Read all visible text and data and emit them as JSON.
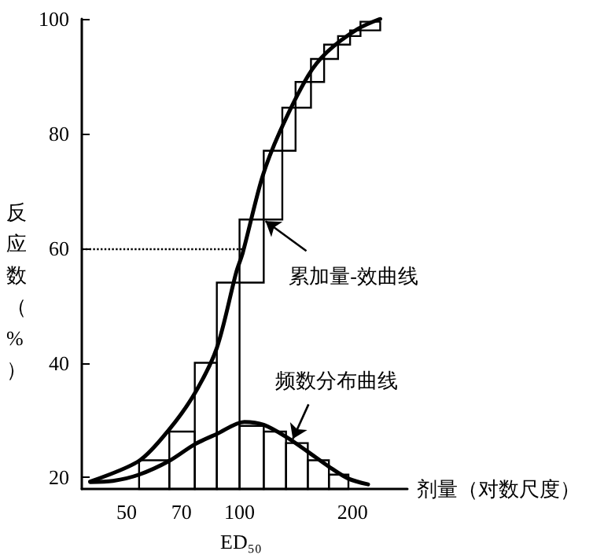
{
  "chart_data": {
    "type": "line",
    "xlabel": "剂量（对数尺度）",
    "ylabel": "反应数（%）",
    "log": "x",
    "xlim": [
      38,
      280
    ],
    "xticks": [
      50,
      70,
      100,
      200
    ],
    "ylim": [
      18,
      100
    ],
    "yticks": [
      20,
      40,
      60,
      80,
      100
    ],
    "grid": false,
    "marker": "none",
    "line_style": "solid",
    "series": [
      {
        "type": "histogram",
        "color": "#000000",
        "bins": [
          54,
          65,
          76,
          87,
          100,
          116,
          130,
          141,
          155,
          168,
          183,
          197,
          210,
          237
        ],
        "base": [
          18,
          18,
          18,
          18,
          54,
          65,
          77,
          84.5,
          89,
          93,
          95.5,
          97,
          98
        ],
        "values": [
          5,
          10,
          22,
          36,
          11,
          12,
          7.5,
          4.5,
          4,
          2.5,
          1.5,
          1,
          1.5
        ]
      },
      {
        "type": "histogram",
        "color": "#000000",
        "bins": [
          100,
          116,
          133,
          152,
          173,
          195
        ],
        "values": [
          29,
          28,
          26,
          23,
          20.5
        ]
      },
      {
        "color": "#000000",
        "x": [
          40,
          54,
          65,
          76,
          87,
          98,
          102,
          115,
          128,
          152,
          171,
          206,
          237
        ],
        "values": [
          19.3,
          22.9,
          28.4,
          34.7,
          42.6,
          55.8,
          59.2,
          72.4,
          80.3,
          90,
          94.2,
          98.2,
          100
        ]
      },
      {
        "color": "#000000",
        "x": [
          40,
          46,
          54,
          65,
          76,
          87,
          103,
          116,
          133,
          152,
          173,
          195,
          220
        ],
        "values": [
          19.2,
          19.4,
          20.5,
          22.9,
          25.8,
          27.6,
          29.7,
          29.2,
          27.1,
          24.5,
          21.9,
          19.8,
          18.8
        ]
      }
    ],
    "ref_lines": [
      {
        "axis": "y",
        "value": 60,
        "line_style": "dotted"
      }
    ],
    "annotations": [
      {
        "text": "累加量-效曲线",
        "x": 115,
        "y": 65
      },
      {
        "text": "频数分布曲线",
        "x": 136,
        "y": 27
      },
      "ED₅₀"
    ]
  }
}
